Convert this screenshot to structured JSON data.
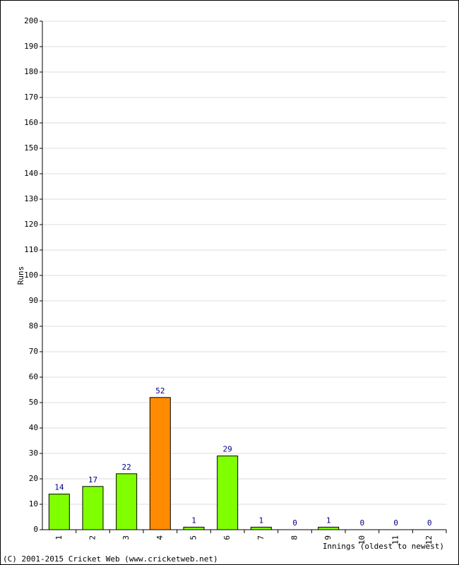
{
  "chart_data": {
    "type": "bar",
    "categories": [
      "1",
      "2",
      "3",
      "4",
      "5",
      "6",
      "7",
      "8",
      "9",
      "10",
      "11",
      "12"
    ],
    "values": [
      14,
      17,
      22,
      52,
      1,
      29,
      1,
      0,
      1,
      0,
      0,
      0
    ],
    "colors": [
      "#80ff00",
      "#80ff00",
      "#80ff00",
      "#ff8c00",
      "#80ff00",
      "#80ff00",
      "#80ff00",
      "#80ff00",
      "#80ff00",
      "#80ff00",
      "#80ff00",
      "#80ff00"
    ],
    "ylim": [
      0,
      200
    ],
    "yticks": [
      0,
      10,
      20,
      30,
      40,
      50,
      60,
      70,
      80,
      90,
      100,
      110,
      120,
      130,
      140,
      150,
      160,
      170,
      180,
      190,
      200
    ],
    "grid": true,
    "y_label": "Runs",
    "x_label": "Innings (oldest to newest)",
    "footer": "(C) 2001-2015 Cricket Web (www.cricketweb.net)"
  }
}
